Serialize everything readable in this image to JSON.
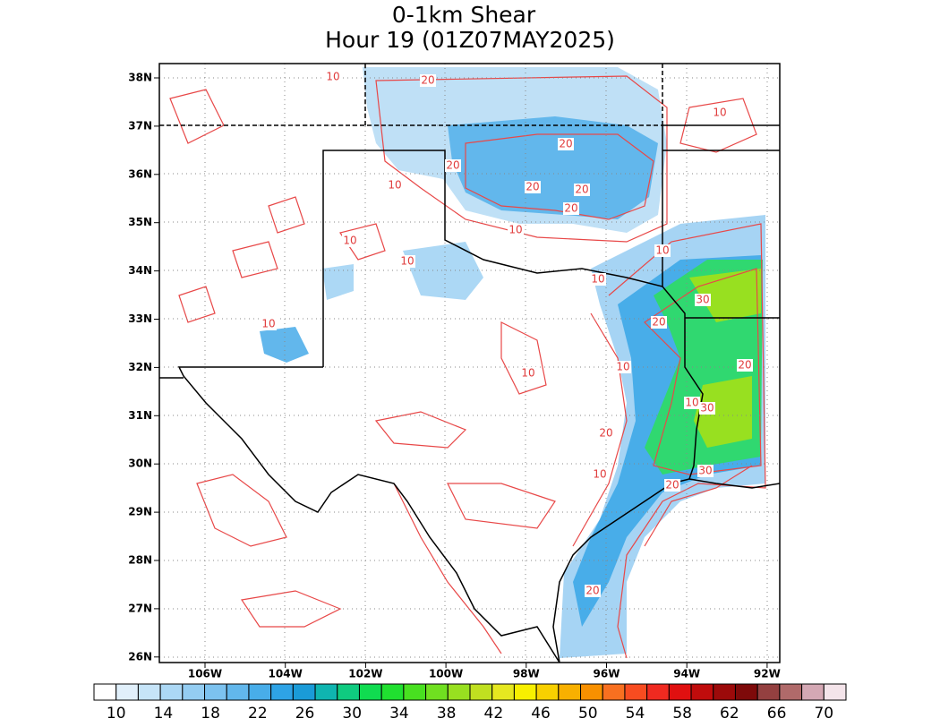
{
  "title": [
    "0-1km Shear",
    "Hour 19 (01Z07MAY2025)"
  ],
  "map": {
    "lat_labels": [
      "38N",
      "37N",
      "36N",
      "35N",
      "34N",
      "33N",
      "32N",
      "31N",
      "30N",
      "29N",
      "28N",
      "27N",
      "26N"
    ],
    "lon_labels": [
      "106W",
      "104W",
      "102W",
      "100W",
      "98W",
      "96W",
      "94W",
      "92W"
    ],
    "contour_labels": [
      "10",
      "20",
      "20",
      "10",
      "20",
      "20",
      "20",
      "10",
      "10",
      "10",
      "10",
      "30",
      "20",
      "20",
      "10",
      "10",
      "30",
      "20",
      "30",
      "20",
      "10",
      "20",
      "10",
      "10",
      "10",
      "10",
      "20"
    ]
  },
  "colorbar": {
    "labels": [
      10,
      14,
      18,
      22,
      26,
      30,
      34,
      38,
      42,
      46,
      50,
      54,
      58,
      62,
      66,
      70
    ],
    "colors": [
      "#ffffff",
      "#e1f0fb",
      "#c6e4f8",
      "#acd8f5",
      "#94cdf2",
      "#7cc2ef",
      "#62b7ec",
      "#48ade9",
      "#2ea3e6",
      "#1a9bd8",
      "#0fb5b0",
      "#0fcb80",
      "#10dc50",
      "#20e030",
      "#48e020",
      "#70e020",
      "#98e020",
      "#c0e020",
      "#e6e820",
      "#f8f000",
      "#f8d000",
      "#f8b000",
      "#f89000",
      "#f87020",
      "#f84c20",
      "#f02a20",
      "#e01010",
      "#c00c0c",
      "#9c0a0a",
      "#7e0a0a",
      "#944040",
      "#b06a6a",
      "#d4a8b4",
      "#f4e4ea"
    ]
  }
}
